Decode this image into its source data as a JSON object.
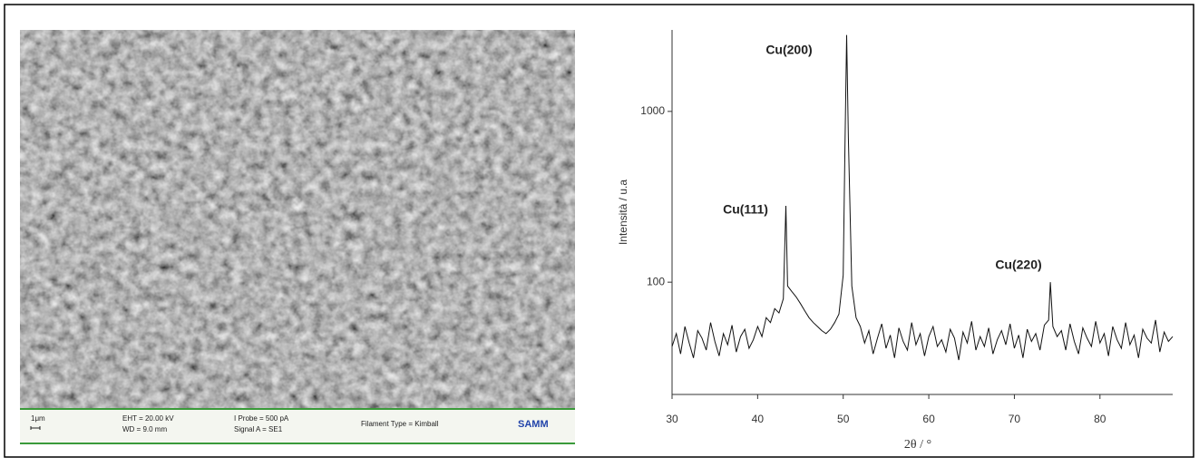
{
  "sem_image": {
    "scale_bar": "1μm",
    "eht": "EHT = 20.00 kV",
    "wd": "WD = 9.0 mm",
    "probe": "I Probe = 500 pA",
    "signal": "Signal A = SE1",
    "filament": "Filament Type = Kimball",
    "logo": "SAMM"
  },
  "chart_data": {
    "type": "line",
    "x_label": "2θ / °",
    "y_label": "Intensità / u.a",
    "annotations": [
      "Cu(111)",
      "Cu(200)",
      "Cu(220)"
    ],
    "x": [
      30,
      30.5,
      31,
      31.5,
      32,
      32.5,
      33,
      33.5,
      34,
      34.5,
      35,
      35.5,
      36,
      36.5,
      37,
      37.5,
      38,
      38.5,
      39,
      39.5,
      40,
      40.5,
      41,
      41.5,
      42,
      42.5,
      43,
      43.3,
      43.5,
      44,
      44.5,
      45,
      45.5,
      46,
      46.5,
      47,
      47.5,
      48,
      48.5,
      49,
      49.5,
      50,
      50.2,
      50.4,
      50.6,
      51,
      51.5,
      52,
      52.5,
      53,
      53.5,
      54,
      54.5,
      55,
      55.5,
      56,
      56.5,
      57,
      57.5,
      58,
      58.5,
      59,
      59.5,
      60,
      60.5,
      61,
      61.5,
      62,
      62.5,
      63,
      63.5,
      64,
      64.5,
      65,
      65.5,
      66,
      66.5,
      67,
      67.5,
      68,
      68.5,
      69,
      69.5,
      70,
      70.5,
      71,
      71.5,
      72,
      72.5,
      73,
      73.5,
      74,
      74.2,
      74.5,
      75,
      75.5,
      76,
      76.5,
      77,
      77.5,
      78,
      78.5,
      79,
      79.5,
      80,
      80.5,
      81,
      81.5,
      82,
      82.5,
      83,
      83.5,
      84,
      84.5,
      85,
      85.5,
      86,
      86.5,
      87,
      87.5,
      88,
      88.5
    ],
    "series": [
      {
        "color": "#111111",
        "values": [
          42,
          50,
          38,
          55,
          44,
          36,
          52,
          47,
          40,
          58,
          45,
          37,
          50,
          43,
          56,
          39,
          48,
          53,
          41,
          46,
          55,
          48,
          62,
          58,
          70,
          66,
          80,
          280,
          95,
          88,
          82,
          75,
          68,
          62,
          58,
          55,
          52,
          50,
          53,
          58,
          65,
          110,
          600,
          2800,
          700,
          95,
          62,
          55,
          44,
          52,
          38,
          47,
          57,
          41,
          49,
          36,
          54,
          45,
          40,
          58,
          43,
          50,
          37,
          48,
          55,
          42,
          46,
          39,
          53,
          47,
          35,
          51,
          44,
          59,
          40,
          48,
          42,
          54,
          38,
          46,
          52,
          43,
          57,
          41,
          49,
          36,
          53,
          45,
          50,
          40,
          56,
          60,
          100,
          55,
          48,
          52,
          40,
          57,
          45,
          38,
          54,
          47,
          42,
          59,
          44,
          50,
          37,
          55,
          46,
          41,
          58,
          43,
          49,
          36,
          53,
          47,
          44,
          60,
          39,
          51,
          45,
          48
        ]
      }
    ],
    "xlim": [
      30,
      88.5
    ],
    "xticks": [
      30,
      40,
      50,
      60,
      70,
      80
    ],
    "ylim": [
      22,
      3000
    ],
    "yticks": [
      100,
      1000
    ],
    "log_y": true
  }
}
